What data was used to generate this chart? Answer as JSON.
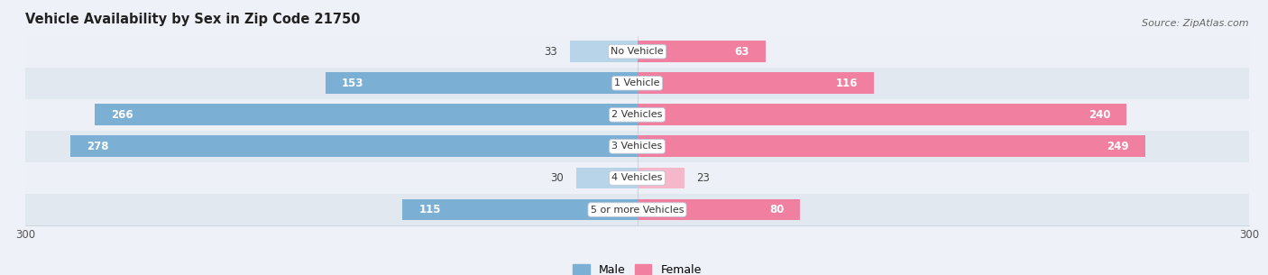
{
  "title": "Vehicle Availability by Sex in Zip Code 21750",
  "source": "Source: ZipAtlas.com",
  "categories": [
    "No Vehicle",
    "1 Vehicle",
    "2 Vehicles",
    "3 Vehicles",
    "4 Vehicles",
    "5 or more Vehicles"
  ],
  "male_values": [
    33,
    153,
    266,
    278,
    30,
    115
  ],
  "female_values": [
    63,
    116,
    240,
    249,
    23,
    80
  ],
  "male_color": "#7bafd4",
  "female_color": "#f07fa0",
  "male_color_light": "#b8d4e8",
  "female_color_light": "#f5b8cb",
  "row_bg_even": "#edf1f7",
  "row_bg_odd": "#e2e8f0",
  "max_value": 300,
  "inside_threshold": 60,
  "title_fontsize": 10.5,
  "source_fontsize": 8,
  "label_fontsize": 8.5,
  "axis_fontsize": 8.5,
  "category_fontsize": 8,
  "legend_fontsize": 9
}
